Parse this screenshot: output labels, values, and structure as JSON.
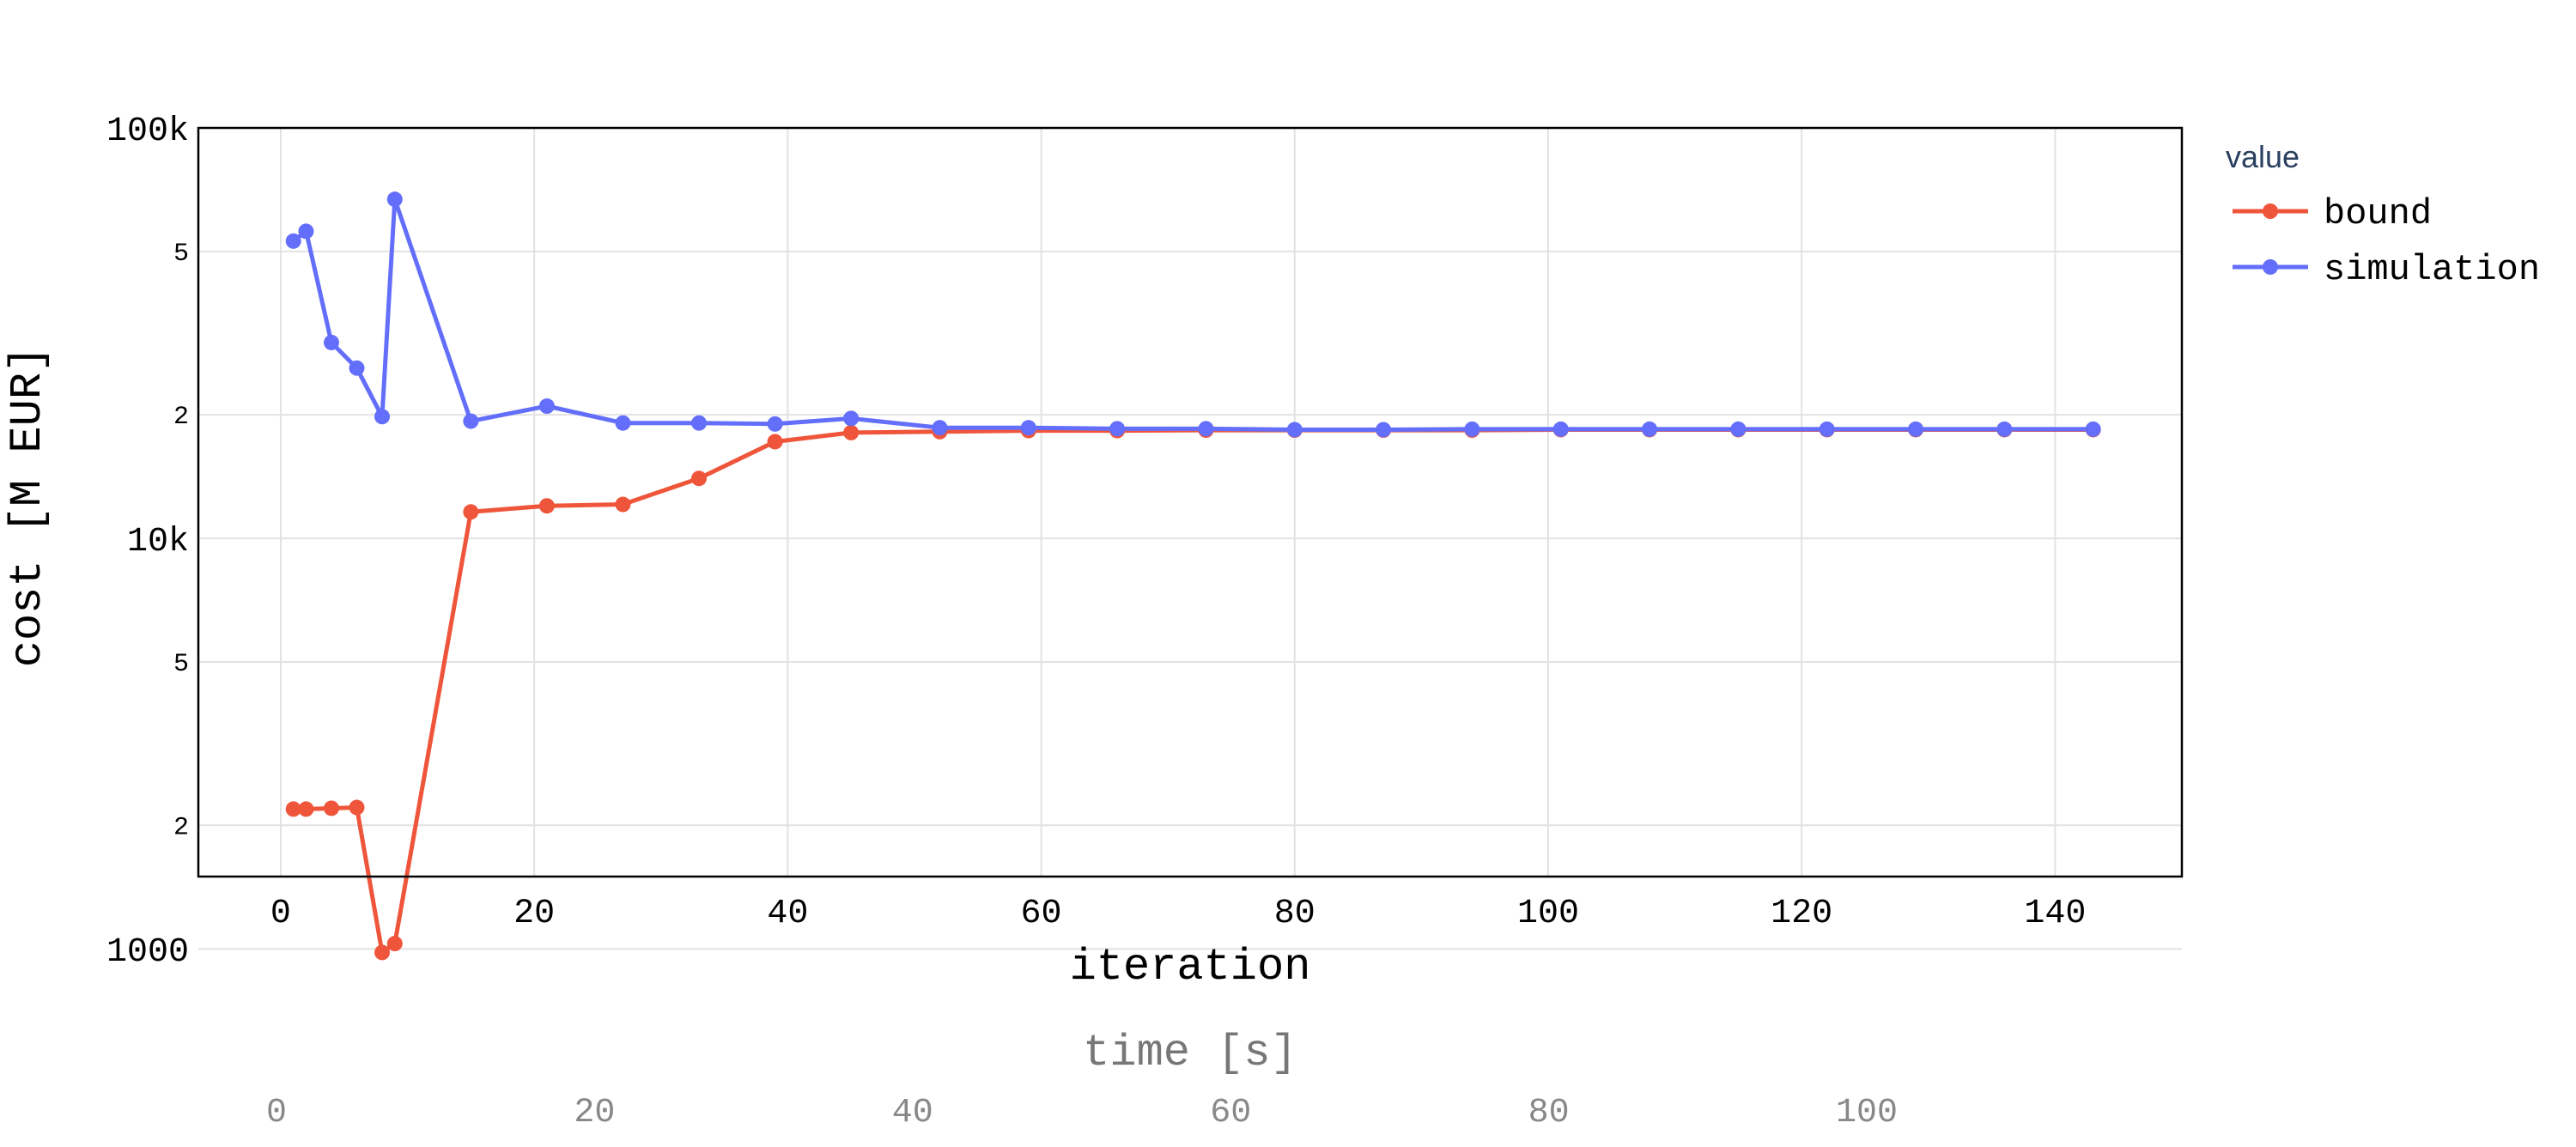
{
  "chart_data": {
    "type": "line",
    "xlabel": "iteration",
    "ylabel": "cost [M EUR]",
    "secondary_xlabel": "time [s]",
    "xlim": [
      -6.5,
      150
    ],
    "ylim_log": [
      1500,
      100000
    ],
    "y_scale": "log",
    "x_ticks": [
      0,
      20,
      40,
      60,
      80,
      100,
      120,
      140
    ],
    "secondary_x_ticks": [
      0,
      20,
      40,
      60,
      80,
      100
    ],
    "y_major_ticks": [
      {
        "value": 1000,
        "label": "1000"
      },
      {
        "value": 10000,
        "label": "10k"
      },
      {
        "value": 100000,
        "label": "100k"
      }
    ],
    "y_minor_ticks": [
      {
        "value": 2000,
        "label": "2"
      },
      {
        "value": 5000,
        "label": "5"
      },
      {
        "value": 20000,
        "label": "2"
      },
      {
        "value": 50000,
        "label": "5"
      }
    ],
    "grid": true,
    "legend": {
      "title": "value",
      "position": "right"
    },
    "series": [
      {
        "name": "bound",
        "color": "#EF553B",
        "points": [
          [
            1,
            2190
          ],
          [
            2,
            2190
          ],
          [
            4,
            2200
          ],
          [
            6,
            2210
          ],
          [
            8,
            980
          ],
          [
            9,
            1030
          ],
          [
            15,
            11600
          ],
          [
            21,
            12000
          ],
          [
            27,
            12100
          ],
          [
            33,
            14000
          ],
          [
            39,
            17200
          ],
          [
            45,
            18100
          ],
          [
            52,
            18200
          ],
          [
            59,
            18300
          ],
          [
            66,
            18300
          ],
          [
            73,
            18350
          ],
          [
            80,
            18350
          ],
          [
            87,
            18350
          ],
          [
            94,
            18350
          ],
          [
            101,
            18400
          ],
          [
            108,
            18400
          ],
          [
            115,
            18400
          ],
          [
            122,
            18400
          ],
          [
            129,
            18400
          ],
          [
            136,
            18400
          ],
          [
            143,
            18400
          ]
        ]
      },
      {
        "name": "simulation",
        "color": "#636EFA",
        "points": [
          [
            1,
            53000
          ],
          [
            2,
            56000
          ],
          [
            4,
            30000
          ],
          [
            6,
            26000
          ],
          [
            8,
            19800
          ],
          [
            9,
            67000
          ],
          [
            15,
            19300
          ],
          [
            21,
            21000
          ],
          [
            27,
            19100
          ],
          [
            33,
            19100
          ],
          [
            39,
            19000
          ],
          [
            45,
            19600
          ],
          [
            52,
            18600
          ],
          [
            59,
            18600
          ],
          [
            66,
            18500
          ],
          [
            73,
            18500
          ],
          [
            80,
            18400
          ],
          [
            87,
            18400
          ],
          [
            94,
            18450
          ],
          [
            101,
            18450
          ],
          [
            108,
            18450
          ],
          [
            115,
            18450
          ],
          [
            122,
            18450
          ],
          [
            129,
            18450
          ],
          [
            136,
            18450
          ],
          [
            143,
            18450
          ]
        ]
      }
    ]
  }
}
